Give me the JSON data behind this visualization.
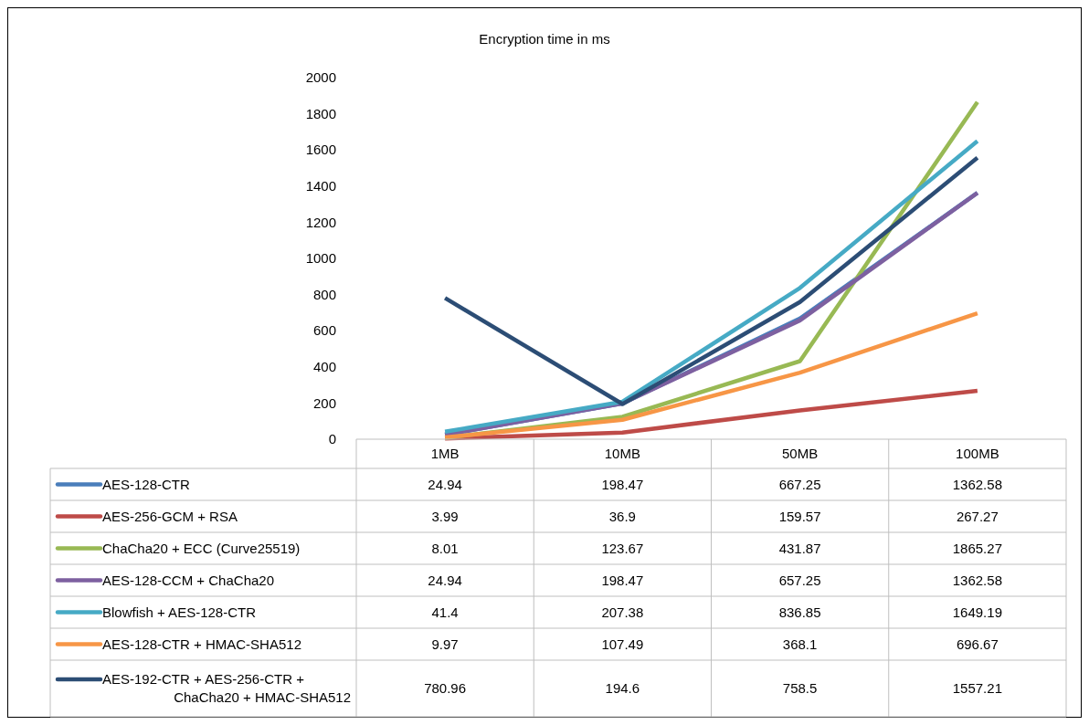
{
  "chart_data": {
    "type": "line",
    "title": "Encryption time in ms",
    "categories": [
      "1MB",
      "10MB",
      "50MB",
      "100MB"
    ],
    "series": [
      {
        "name": "AES-128-CTR",
        "color": "#4a7ebb",
        "values": [
          24.94,
          198.47,
          667.25,
          1362.58
        ]
      },
      {
        "name": "AES-256-GCM + RSA",
        "color": "#be4b48",
        "values": [
          3.99,
          36.9,
          159.57,
          267.27
        ]
      },
      {
        "name": "ChaCha20 + ECC (Curve25519)",
        "color": "#98b954",
        "values": [
          8.01,
          123.67,
          431.87,
          1865.27
        ]
      },
      {
        "name": "AES-128-CCM + ChaCha20",
        "color": "#7d60a0",
        "values": [
          24.94,
          198.47,
          657.25,
          1362.58
        ]
      },
      {
        "name": "Blowfish + AES-128-CTR",
        "color": "#46aac5",
        "values": [
          41.4,
          207.38,
          836.85,
          1649.19
        ]
      },
      {
        "name": "AES-128-CTR + HMAC-SHA512",
        "color": "#f79646",
        "values": [
          9.97,
          107.49,
          368.1,
          696.67
        ]
      },
      {
        "name": "AES-192-CTR + AES-256-CTR + ChaCha20 + HMAC-SHA512",
        "color": "#2c4d75",
        "values": [
          780.96,
          194.6,
          758.5,
          1557.21
        ]
      }
    ],
    "ylim": [
      0,
      2000
    ],
    "yticks": [
      0,
      200,
      400,
      600,
      800,
      1000,
      1200,
      1400,
      1600,
      1800,
      2000
    ],
    "data_labels": true,
    "legend": "bottom",
    "grid": false,
    "marker": "none",
    "line_style": "solid"
  }
}
